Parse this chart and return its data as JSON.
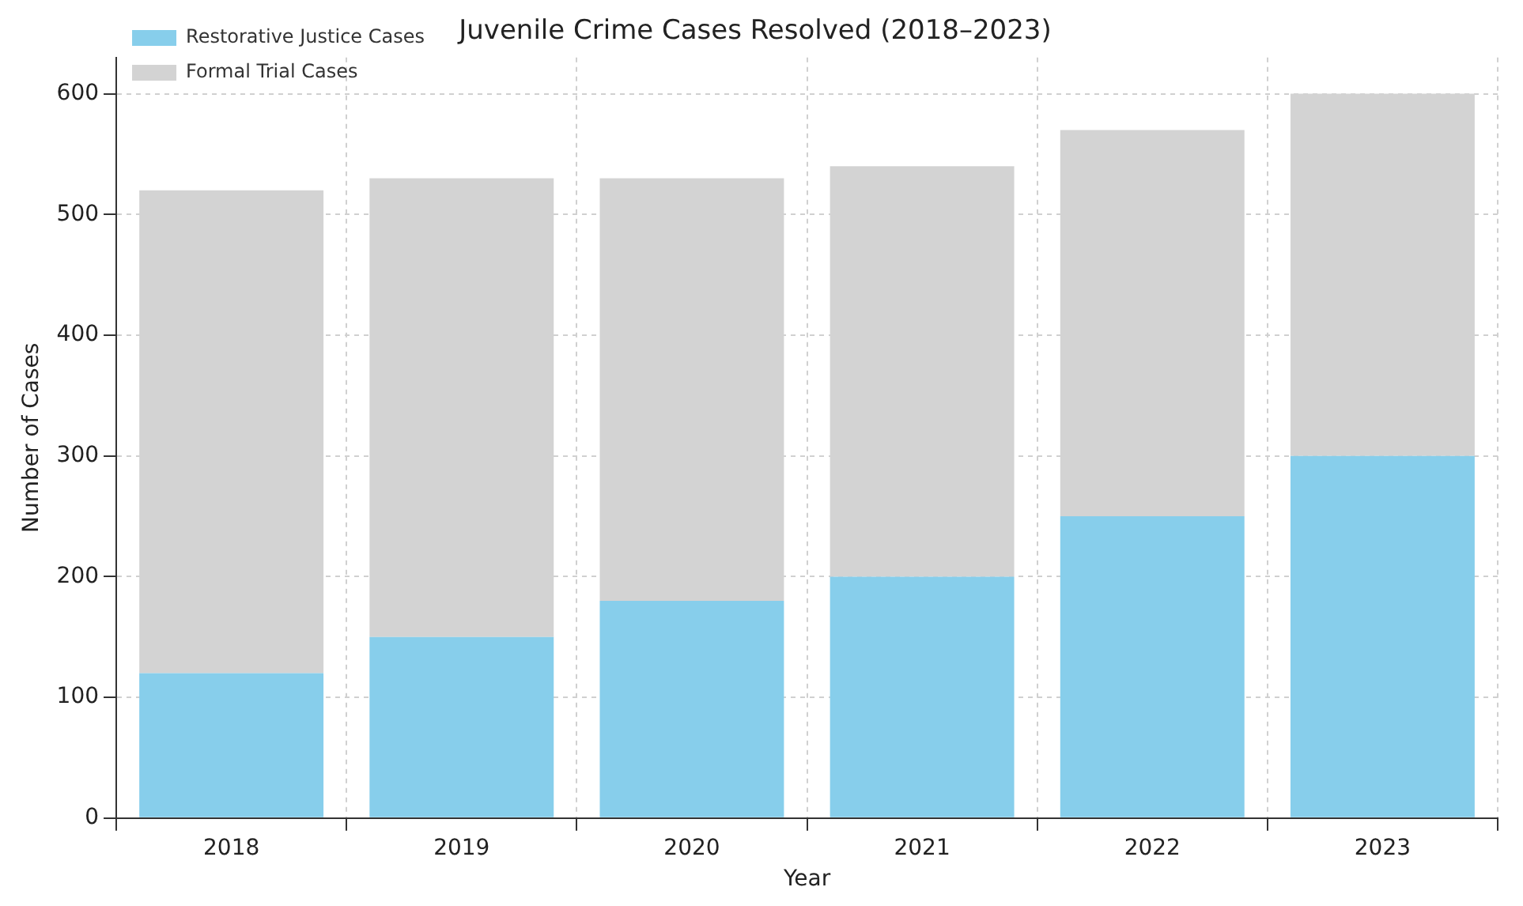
{
  "chart_data": {
    "type": "bar",
    "title": "Juvenile Crime Cases Resolved (2018–2023)",
    "xlabel": "Year",
    "ylabel": "Number of Cases",
    "categories": [
      "2018",
      "2019",
      "2020",
      "2021",
      "2022",
      "2023"
    ],
    "series": [
      {
        "name": "Restorative Justice Cases",
        "color": "#87ceeb",
        "values": [
          120,
          150,
          180,
          200,
          250,
          300
        ]
      },
      {
        "name": "Formal Trial Cases",
        "color": "#d3d3d3",
        "values": [
          400,
          380,
          350,
          340,
          320,
          300
        ]
      }
    ],
    "stacked": true,
    "ylim": [
      0,
      630
    ],
    "yticks": [
      0,
      100,
      200,
      300,
      400,
      500,
      600
    ],
    "grid": true,
    "legend": "top left"
  }
}
